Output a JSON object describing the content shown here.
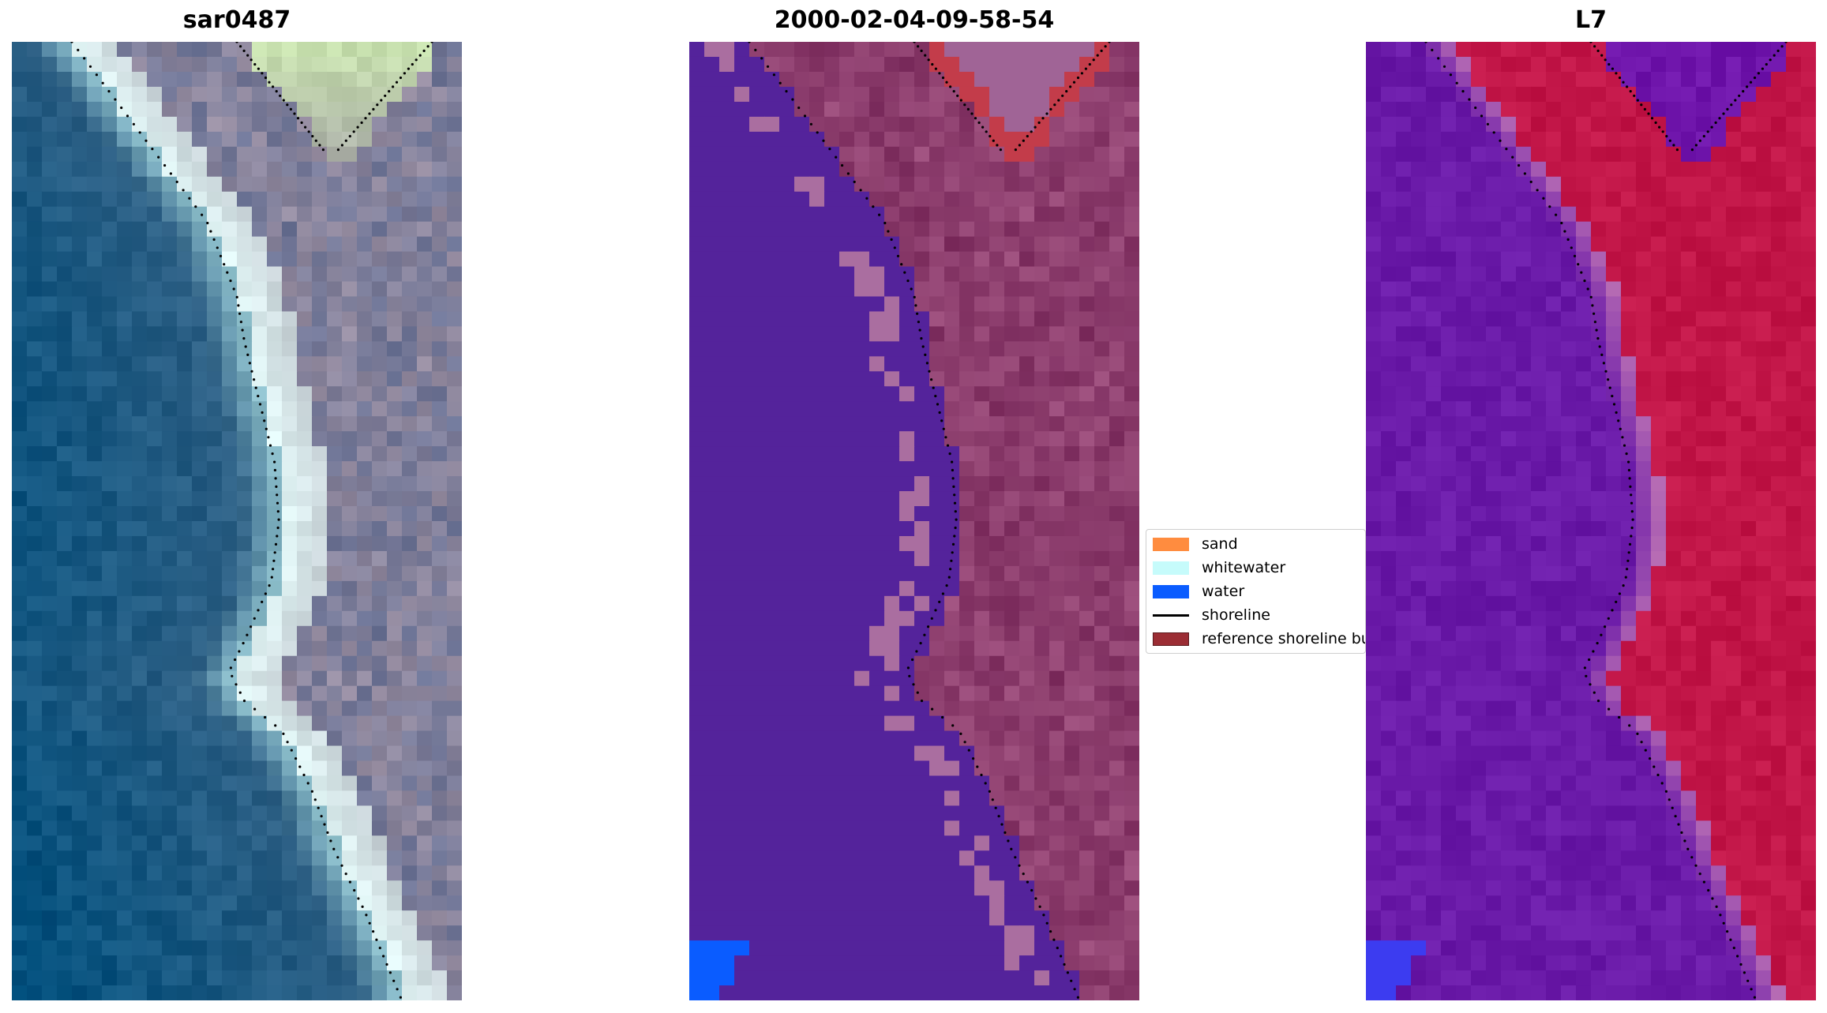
{
  "figure": {
    "panels": [
      {
        "title": "sar0487",
        "palette": "rgb"
      },
      {
        "title": "2000-02-04-09-58-54",
        "palette": "classified"
      },
      {
        "title": "L7",
        "palette": "mndwi"
      }
    ]
  },
  "legend": {
    "items": [
      {
        "label": "sand",
        "kind": "patch",
        "color": "#ff8c3f"
      },
      {
        "label": "whitewater",
        "kind": "patch",
        "color": "#c6fbfb"
      },
      {
        "label": "water",
        "kind": "patch",
        "color": "#0a5cff"
      },
      {
        "label": "shoreline",
        "kind": "line",
        "color": "#000000"
      },
      {
        "label": "reference shoreline buffer",
        "kind": "patch",
        "color": "#9b2d34"
      }
    ]
  },
  "colors": {
    "water_class": "#54239b",
    "buffer_red": "#c33c4a",
    "land_class": "#9a4c7a",
    "sea_blue": "#2e5f85",
    "mndwi_purple": "#6a1aa8",
    "mndwi_red": "#c21648"
  }
}
